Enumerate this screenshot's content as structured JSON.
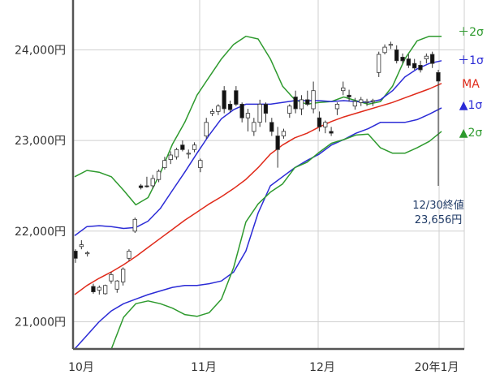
{
  "chart_data": {
    "type": "candlestick-bollinger",
    "ylim": [
      20700,
      24550
    ],
    "yticks": [
      21000,
      22000,
      23000,
      24000
    ],
    "ytick_labels": [
      "21,000円",
      "22,000円",
      "23,000円",
      "24,000円"
    ],
    "xlabels": [
      {
        "date": "2019-10",
        "label": "10月"
      },
      {
        "date": "2019-11",
        "label": "11月"
      },
      {
        "date": "2019-12",
        "label": "12月"
      },
      {
        "date": "2020-01",
        "label": "20年1月"
      }
    ],
    "band_labels": [
      {
        "key": "plus2",
        "label": "＋2σ",
        "color": "#2e9a2e"
      },
      {
        "key": "plus1",
        "label": "＋1σ",
        "color": "#2b2bd6"
      },
      {
        "key": "ma",
        "label": "MA",
        "color": "#e02a1a"
      },
      {
        "key": "minus1",
        "label": "▲1σ",
        "color": "#2b2bd6"
      },
      {
        "key": "minus2",
        "label": "▲2σ",
        "color": "#2e9a2e"
      }
    ],
    "annotation": {
      "line1": "12/30終値",
      "line2": "23,656円"
    },
    "series": {
      "plus2": [
        22600,
        22670,
        22650,
        22600,
        22450,
        22290,
        22370,
        22640,
        22960,
        23200,
        23500,
        23700,
        23900,
        24060,
        24150,
        24120,
        23900,
        23600,
        23450,
        23400,
        23420,
        23430,
        23480,
        23440,
        23400,
        23430,
        23600,
        23900,
        24100,
        24150,
        24150
      ],
      "plus1": [
        21950,
        22050,
        22060,
        22050,
        22030,
        22040,
        22110,
        22250,
        22450,
        22650,
        22860,
        23060,
        23240,
        23340,
        23400,
        23400,
        23400,
        23420,
        23440,
        23440,
        23440,
        23430,
        23440,
        23430,
        23420,
        23450,
        23550,
        23700,
        23790,
        23850,
        23880
      ],
      "ma": [
        21300,
        21400,
        21480,
        21550,
        21630,
        21720,
        21820,
        21920,
        22020,
        22120,
        22210,
        22300,
        22380,
        22470,
        22570,
        22700,
        22850,
        22950,
        23030,
        23080,
        23150,
        23210,
        23260,
        23300,
        23340,
        23380,
        23420,
        23470,
        23520,
        23570,
        23630
      ],
      "minus1": [
        20700,
        20850,
        21000,
        21120,
        21200,
        21250,
        21300,
        21340,
        21380,
        21400,
        21400,
        21420,
        21450,
        21550,
        21780,
        22200,
        22500,
        22600,
        22700,
        22780,
        22850,
        22950,
        23010,
        23080,
        23130,
        23200,
        23200,
        23200,
        23230,
        23290,
        23360
      ],
      "minus2": [
        20550,
        20550,
        20560,
        20700,
        21050,
        21200,
        21230,
        21200,
        21150,
        21080,
        21060,
        21100,
        21250,
        21600,
        22100,
        22300,
        22430,
        22520,
        22700,
        22760,
        22870,
        22970,
        23010,
        23060,
        23070,
        22920,
        22860,
        22860,
        22920,
        22990,
        23100
      ],
      "candles": [
        [
          21780,
          21800,
          21650,
          21700
        ],
        [
          21830,
          21900,
          21800,
          21850
        ],
        [
          21750,
          21780,
          21720,
          21760
        ],
        [
          21390,
          21420,
          21310,
          21330
        ],
        [
          21350,
          21400,
          21300,
          21380
        ],
        [
          21310,
          21410,
          21300,
          21400
        ],
        [
          21450,
          21550,
          21420,
          21520
        ],
        [
          21360,
          21460,
          21320,
          21450
        ],
        [
          21440,
          21600,
          21400,
          21580
        ],
        [
          21700,
          21800,
          21670,
          21780
        ],
        [
          22000,
          22150,
          21980,
          22130
        ],
        [
          22500,
          22520,
          22460,
          22480
        ],
        [
          22500,
          22600,
          22480,
          22490
        ],
        [
          22500,
          22620,
          22470,
          22580
        ],
        [
          22570,
          22680,
          22540,
          22660
        ],
        [
          22700,
          22820,
          22680,
          22780
        ],
        [
          22790,
          22880,
          22740,
          22840
        ],
        [
          22820,
          22920,
          22790,
          22900
        ],
        [
          22950,
          23000,
          22880,
          22900
        ],
        [
          22850,
          22900,
          22800,
          22860
        ],
        [
          22900,
          22980,
          22870,
          22950
        ],
        [
          22700,
          22800,
          22650,
          22780
        ],
        [
          23050,
          23250,
          23020,
          23200
        ],
        [
          23300,
          23350,
          23270,
          23320
        ],
        [
          23320,
          23400,
          23280,
          23380
        ],
        [
          23550,
          23600,
          23300,
          23350
        ],
        [
          23400,
          23440,
          23310,
          23340
        ],
        [
          23550,
          23600,
          23380,
          23400
        ],
        [
          23400,
          23420,
          23200,
          23250
        ],
        [
          23250,
          23350,
          23100,
          23300
        ],
        [
          23100,
          23250,
          23050,
          23200
        ],
        [
          23200,
          23450,
          23150,
          23400
        ],
        [
          23400,
          23420,
          23200,
          23300
        ],
        [
          23200,
          23250,
          23050,
          23100
        ],
        [
          23050,
          23150,
          22700,
          22900
        ],
        [
          23050,
          23130,
          23020,
          23100
        ],
        [
          23300,
          23400,
          23250,
          23380
        ],
        [
          23480,
          23550,
          23300,
          23350
        ],
        [
          23350,
          23500,
          23280,
          23450
        ],
        [
          23450,
          23550,
          23380,
          23400
        ],
        [
          23350,
          23650,
          23300,
          23550
        ],
        [
          23250,
          23320,
          23100,
          23150
        ],
        [
          23150,
          23220,
          23080,
          23200
        ],
        [
          23100,
          23150,
          23050,
          23080
        ],
        [
          23350,
          23420,
          23280,
          23400
        ],
        [
          23550,
          23650,
          23500,
          23580
        ],
        [
          23500,
          23560,
          23430,
          23480
        ],
        [
          23380,
          23470,
          23340,
          23430
        ],
        [
          23420,
          23480,
          23380,
          23450
        ],
        [
          23420,
          23460,
          23380,
          23430
        ],
        [
          23430,
          23460,
          23380,
          23440
        ],
        [
          23750,
          23980,
          23700,
          23950
        ],
        [
          23970,
          24060,
          23950,
          24030
        ],
        [
          24050,
          24090,
          24010,
          24060
        ],
        [
          24000,
          24050,
          23850,
          23880
        ],
        [
          23920,
          23960,
          23850,
          23880
        ],
        [
          23900,
          23950,
          23800,
          23830
        ],
        [
          23850,
          23900,
          23780,
          23800
        ],
        [
          23830,
          23880,
          23750,
          23780
        ],
        [
          23900,
          23960,
          23850,
          23930
        ],
        [
          23950,
          23980,
          23800,
          23850
        ],
        [
          23750,
          23780,
          22500,
          23656
        ]
      ]
    }
  }
}
